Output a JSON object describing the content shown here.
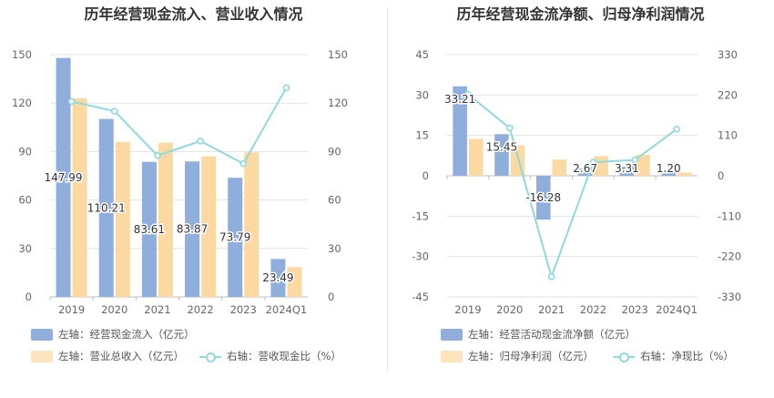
{
  "colors": {
    "bar1": "#8faedb",
    "bar2": "#fcd9a1",
    "line": "#8fd8dc",
    "grid": "#e3e3e3",
    "axis_text": "#666666"
  },
  "chart_data": [
    {
      "type": "bar",
      "title": "历年经营现金流入、营业收入情况",
      "categories": [
        "2019",
        "2020",
        "2021",
        "2022",
        "2023",
        "2024Q1"
      ],
      "series": [
        {
          "name": "左轴：经营现金流入（亿元）",
          "axis": "left",
          "type": "bar",
          "values": [
            147.99,
            110.21,
            83.61,
            83.87,
            73.79,
            23.49
          ],
          "labels": [
            "147.99",
            "110.21",
            "83.61",
            "83.87",
            "73.79",
            "23.49"
          ]
        },
        {
          "name": "左轴：营业总收入（亿元）",
          "axis": "left",
          "type": "bar",
          "values": [
            123,
            96,
            95.5,
            87,
            89.5,
            18.5
          ]
        },
        {
          "name": "右轴：营收现金比（%）",
          "axis": "right",
          "type": "line",
          "values": [
            121,
            115,
            87.5,
            96.5,
            82.5,
            129.5
          ]
        }
      ],
      "y_left": {
        "min": 0,
        "max": 150,
        "ticks": [
          "0",
          "30",
          "60",
          "90",
          "120",
          "150"
        ]
      },
      "y_right": {
        "min": 0,
        "max": 150,
        "ticks": [
          "0",
          "30",
          "60",
          "90",
          "120",
          "150"
        ]
      },
      "grid": true,
      "legend_position": "bottom-left"
    },
    {
      "type": "bar",
      "title": "历年经营现金流净额、归母净利润情况",
      "categories": [
        "2019",
        "2020",
        "2021",
        "2022",
        "2023",
        "2024Q1"
      ],
      "series": [
        {
          "name": "左轴：经营活动现金流净额（亿元）",
          "axis": "left",
          "type": "bar",
          "values": [
            33.21,
            15.45,
            -16.28,
            2.67,
            3.31,
            1.2
          ],
          "labels": [
            "33.21",
            "15.45",
            "-16.28",
            "2.67",
            "3.31",
            "1.20"
          ]
        },
        {
          "name": "左轴：归母净利润（亿元）",
          "axis": "left",
          "type": "bar",
          "values": [
            13.7,
            11.3,
            6.0,
            7.3,
            7.8,
            1.2
          ]
        },
        {
          "name": "右轴：净现比（%）",
          "axis": "right",
          "type": "line",
          "values": [
            222,
            130,
            -275,
            37,
            43,
            127
          ]
        }
      ],
      "y_left": {
        "min": -45,
        "max": 45,
        "ticks": [
          "-45",
          "-30",
          "-15",
          "0",
          "15",
          "30",
          "45"
        ]
      },
      "y_right": {
        "min": -330,
        "max": 330,
        "ticks": [
          "-330",
          "-220",
          "-110",
          "0",
          "110",
          "220",
          "330"
        ]
      },
      "grid": true,
      "legend_position": "bottom-left"
    }
  ]
}
